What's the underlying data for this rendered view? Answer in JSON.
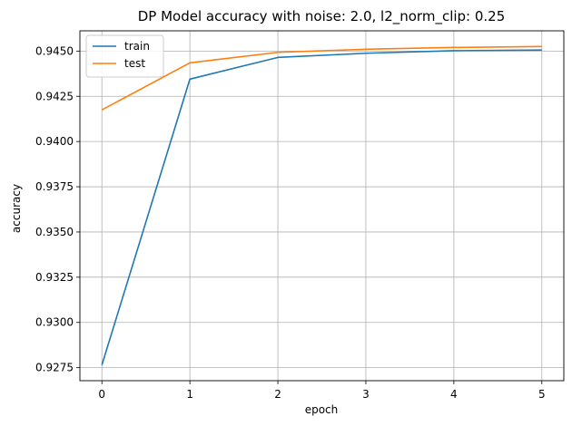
{
  "chart_data": {
    "type": "line",
    "title": "DP Model accuracy with noise: 2.0, l2_norm_clip: 0.25",
    "xlabel": "epoch",
    "ylabel": "accuracy",
    "x": [
      0,
      1,
      2,
      3,
      4,
      5
    ],
    "xticks": [
      0,
      1,
      2,
      3,
      4,
      5
    ],
    "xlim": [
      -0.25,
      5.25
    ],
    "yticks": [
      0.9275,
      0.93,
      0.9325,
      0.935,
      0.9375,
      0.94,
      0.9425,
      0.945
    ],
    "ytick_labels": [
      "0.9275",
      "0.9300",
      "0.9325",
      "0.9350",
      "0.9375",
      "0.9400",
      "0.9425",
      "0.9450"
    ],
    "ylim": [
      0.92678,
      0.94612
    ],
    "grid": true,
    "legend_position": "top-left",
    "series": [
      {
        "name": "train",
        "color": "#1f77b4",
        "values": [
          0.92765,
          0.94345,
          0.94465,
          0.94488,
          0.94502,
          0.94506
        ]
      },
      {
        "name": "test",
        "color": "#ff7f0e",
        "values": [
          0.94175,
          0.94435,
          0.94493,
          0.9451,
          0.9452,
          0.94525
        ]
      }
    ]
  }
}
